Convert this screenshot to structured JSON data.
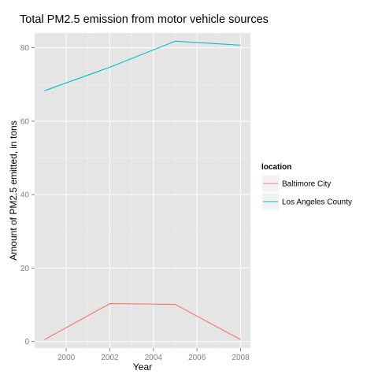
{
  "chart_data": {
    "type": "line",
    "title": "Total PM2.5 emission from motor vehicle sources",
    "xlabel": "Year",
    "ylabel": "Amount of PM2.5 emitted, in tons",
    "x": [
      1999,
      2002,
      2005,
      2008
    ],
    "xticks": [
      2000,
      2002,
      2004,
      2006,
      2008
    ],
    "yticks": [
      0,
      20,
      40,
      60,
      80
    ],
    "xlim": [
      1998.55,
      2008.45
    ],
    "ylim": [
      -1.8,
      84.0
    ],
    "grid": true,
    "legend": {
      "title": "location",
      "position": "right"
    },
    "series": [
      {
        "name": "Baltimore City",
        "values": [
          0.5,
          10.3,
          10.1,
          0.5
        ],
        "color": "#f8766d"
      },
      {
        "name": "Los Angeles County",
        "values": [
          68.3,
          74.7,
          81.8,
          80.7
        ],
        "color": "#00bfc4"
      }
    ]
  },
  "colors": {
    "panel_background": "#e5e5e5",
    "grid": "#ffffff"
  }
}
